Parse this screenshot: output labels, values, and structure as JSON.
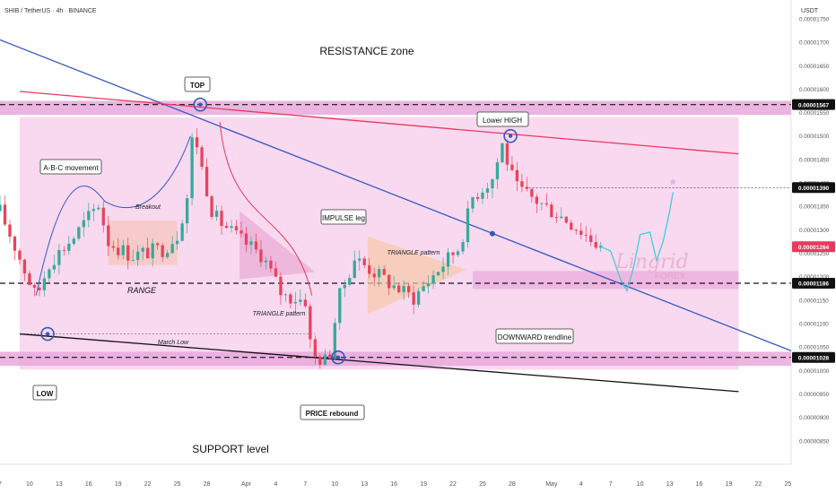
{
  "header": {
    "symbol_line": "SHIB / TetherUS · 4h · BINANCE"
  },
  "colors": {
    "background": "#ffffff",
    "pink_fill": "#f8d9f0",
    "band_fill": "#e9a8dc",
    "candle_up": "#35aa98",
    "candle_down": "#e8435a",
    "blue_line": "#3558c0",
    "red_line": "#e8395c",
    "black_line": "#111111",
    "badge_blue": "#2d5bd7",
    "badge_red": "#e8395c",
    "projection": "#3ad0d8"
  },
  "chart_data": {
    "type": "candlestick",
    "title": "",
    "price_axis": {
      "unit": "USDT",
      "ylim": [
        8e-06,
        1.79e-05
      ],
      "ticks": [
        "0.00000850",
        "0.00000900",
        "0.00000950",
        "0.00001000",
        "0.00001050",
        "0.00001100",
        "0.00001150",
        "0.00001200",
        "0.00001250",
        "0.00001300",
        "0.00001350",
        "0.00001400",
        "0.00001450",
        "0.00001500",
        "0.00001550",
        "0.00001600",
        "0.00001650",
        "0.00001700",
        "0.00001750"
      ],
      "tick_values": [
        8.5,
        9,
        9.5,
        10,
        10.5,
        11,
        11.5,
        12,
        12.5,
        13,
        13.5,
        14,
        14.5,
        15,
        15.5,
        16,
        16.5,
        17,
        17.5
      ],
      "highlighted": [
        {
          "label": "0.00001567",
          "value": 15.67,
          "style": "dark"
        },
        {
          "label": "0.00001390",
          "value": 13.9,
          "style": "dark"
        },
        {
          "label": "0.00001264",
          "value": 12.64,
          "style": "red"
        },
        {
          "label": "0.00001186",
          "value": 11.86,
          "style": "dark"
        },
        {
          "label": "0.00001028",
          "value": 10.28,
          "style": "dark"
        }
      ]
    },
    "time_axis": {
      "labels": [
        "7",
        "10",
        "13",
        "16",
        "19",
        "22",
        "25",
        "28",
        "Apr",
        "4",
        "7",
        "10",
        "13",
        "16",
        "19",
        "22",
        "25",
        "28",
        "May",
        "4",
        "7",
        "10",
        "13",
        "16",
        "19",
        "22",
        "25"
      ],
      "label_index": [
        0,
        18,
        36,
        54,
        72,
        90,
        108,
        126,
        150,
        168,
        186,
        204,
        222,
        240,
        258,
        276,
        294,
        312,
        336,
        354,
        372,
        390,
        408,
        426,
        444,
        462,
        480
      ],
      "xlim_index": [
        0,
        482
      ]
    },
    "annotations": {
      "resistance_zone": "RESISTANCE zone",
      "support_level": "SUPPORT level",
      "top": "TOP",
      "lower_high": "Lower HIGH",
      "low": "LOW",
      "price_rebound": "PRICE rebound",
      "abc_movement": "A-B-C movement",
      "impulse_leg": "IMPULSE leg",
      "downward_trendline": "DOWNWARD trendline",
      "breakout": "Breakout",
      "range": "RANGE",
      "triangle_pattern_1": "TRIANGLE pattern",
      "triangle_pattern_2": "TRIANGLE pattern",
      "march_low": "March Low",
      "watermark_main": "Lingrid",
      "watermark_sub": "FOREX"
    }
  }
}
